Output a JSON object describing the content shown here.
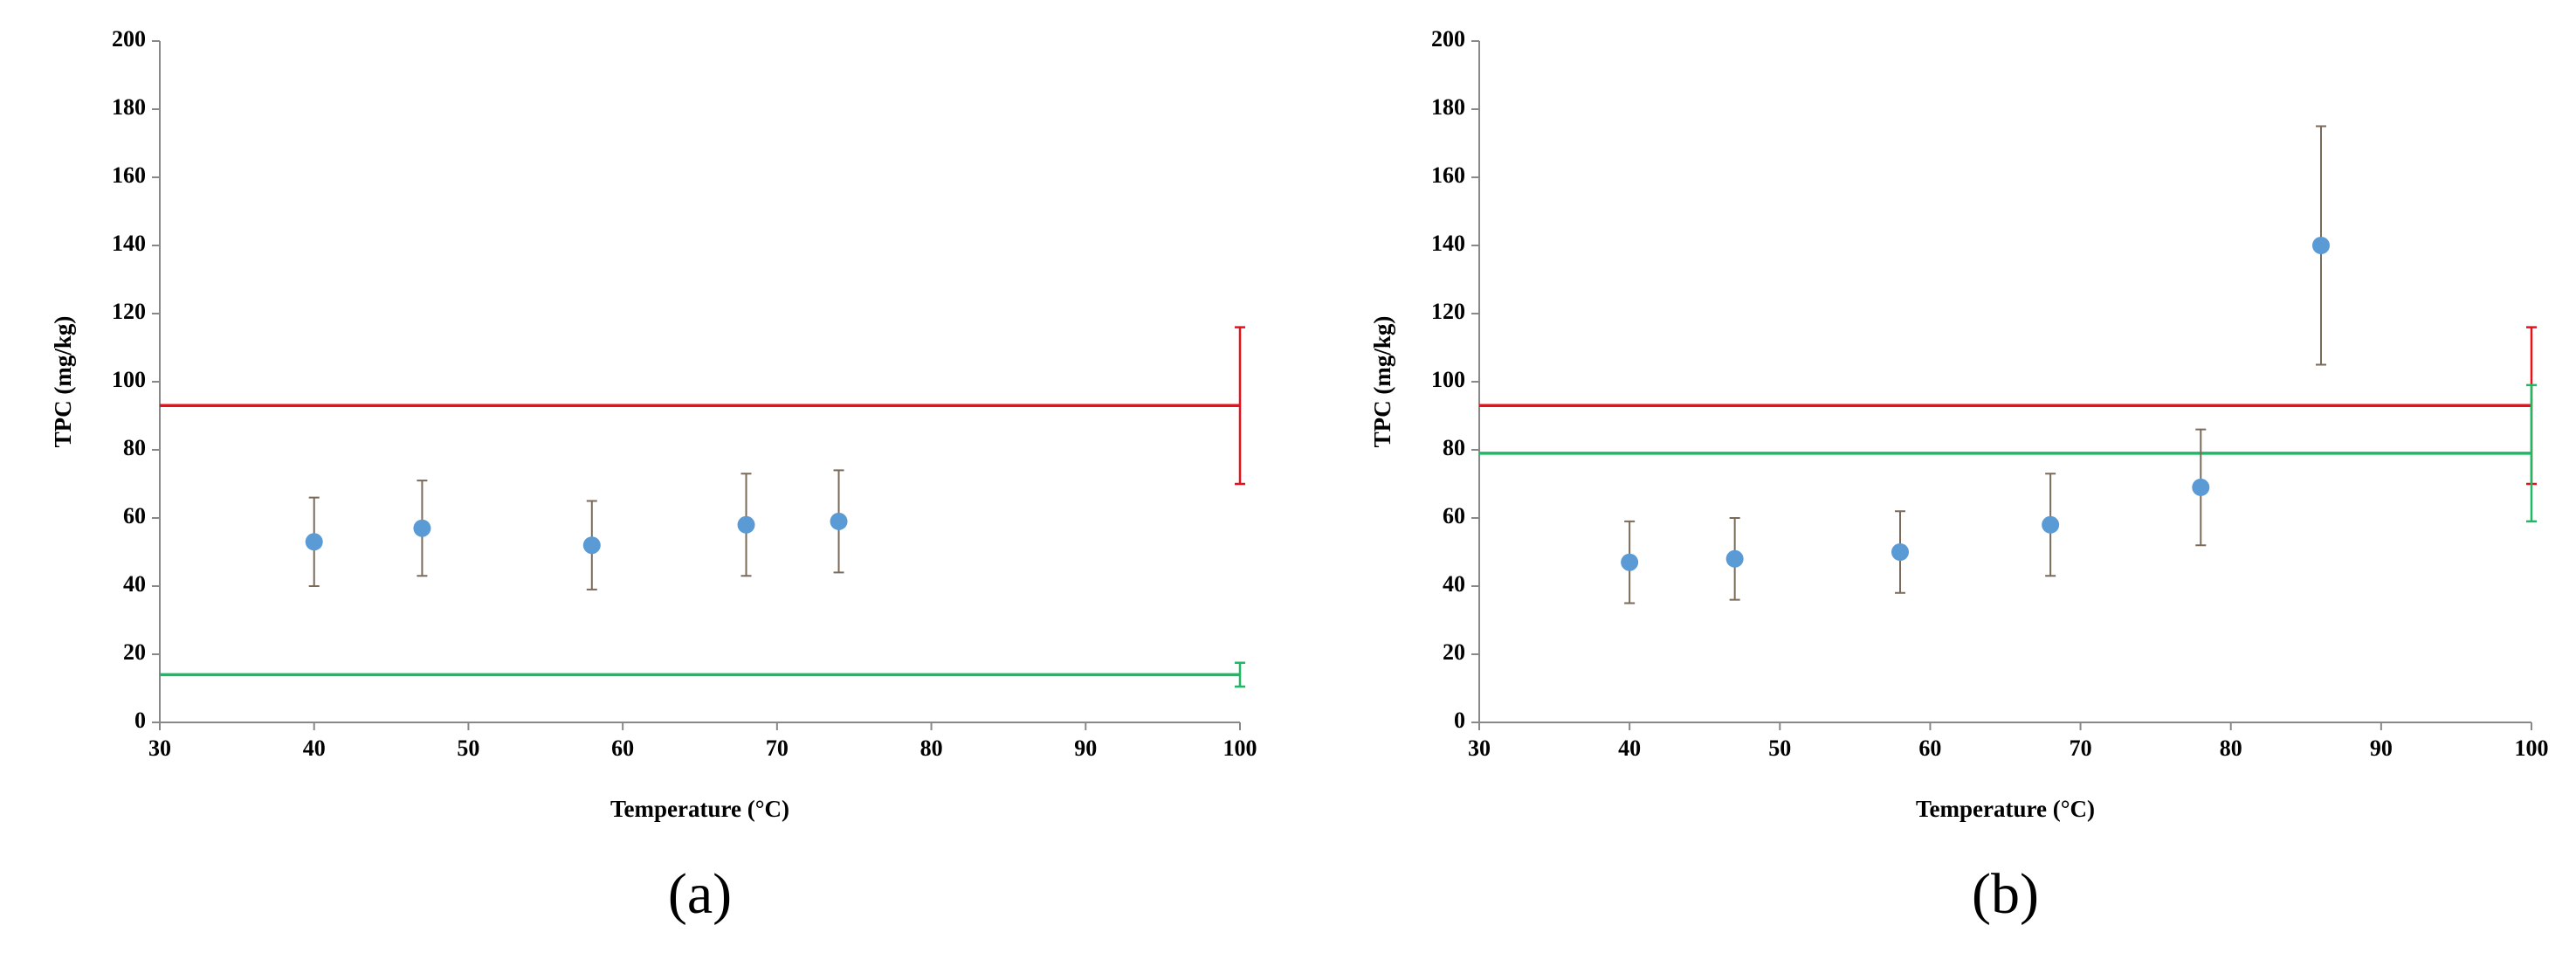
{
  "chart_data": [
    {
      "type": "scatter",
      "label": "(a)",
      "x_label": "Temperature (°C)",
      "y_label": "TPC (mg/kg)",
      "xlim": [
        30,
        100
      ],
      "xticks": [
        30,
        40,
        50,
        60,
        70,
        80,
        90,
        100
      ],
      "ylim": [
        0,
        200
      ],
      "yticks": [
        0,
        20,
        40,
        60,
        80,
        100,
        120,
        140,
        160,
        180,
        200
      ],
      "series": [
        {
          "color": "#5b9bd5",
          "error_color": "#7a6a5a",
          "x": [
            40,
            47,
            58,
            68,
            74
          ],
          "values": [
            53,
            57,
            52,
            58,
            59
          ],
          "errors": [
            13,
            14,
            13,
            15,
            15
          ]
        }
      ],
      "reference_lines": [
        {
          "color": "#e8101a",
          "value": 93,
          "error": 23,
          "error_x": 100
        },
        {
          "color": "#1fb864",
          "value": 14,
          "error": 3.5,
          "error_x": 100
        }
      ]
    },
    {
      "type": "scatter",
      "label": "(b)",
      "x_label": "Temperature (°C)",
      "y_label": "TPC (mg/kg)",
      "xlim": [
        30,
        100
      ],
      "xticks": [
        30,
        40,
        50,
        60,
        70,
        80,
        90,
        100
      ],
      "ylim": [
        0,
        200
      ],
      "yticks": [
        0,
        20,
        40,
        60,
        80,
        100,
        120,
        140,
        160,
        180,
        200
      ],
      "series": [
        {
          "color": "#5b9bd5",
          "error_color": "#7a6a5a",
          "x": [
            40,
            47,
            58,
            68,
            78,
            86
          ],
          "values": [
            47,
            48,
            50,
            58,
            69,
            140
          ],
          "errors": [
            12,
            12,
            12,
            15,
            17,
            35
          ]
        }
      ],
      "reference_lines": [
        {
          "color": "#e8101a",
          "value": 93,
          "error": 23,
          "error_x": 100
        },
        {
          "color": "#1fb864",
          "value": 79,
          "error": 20,
          "error_x": 100
        }
      ]
    }
  ]
}
